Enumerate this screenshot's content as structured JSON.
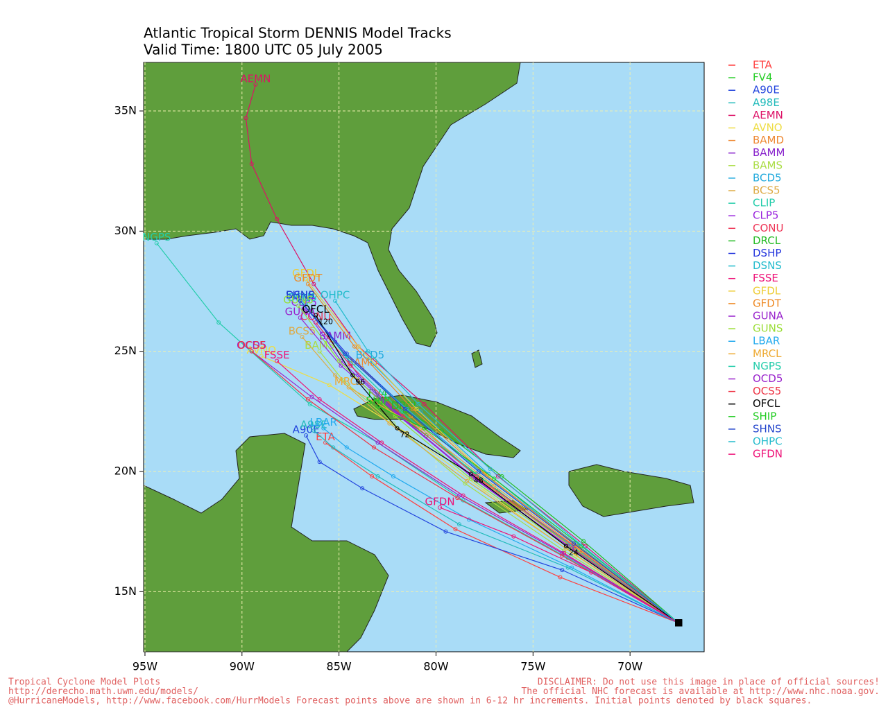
{
  "chart_data": {
    "type": "track-map",
    "title": "Atlantic Tropical Storm DENNIS Model Tracks",
    "subtitle": "Valid Time: 1800 UTC 05 July 2005",
    "xlim": [
      -95.07,
      -66.18
    ],
    "ylim": [
      12.5,
      37.02
    ],
    "xticks": [
      {
        "value": -95,
        "label": "95W"
      },
      {
        "value": -90,
        "label": "90W"
      },
      {
        "value": -85,
        "label": "85W"
      },
      {
        "value": -80,
        "label": "80W"
      },
      {
        "value": -75,
        "label": "75W"
      },
      {
        "value": -70,
        "label": "70W"
      }
    ],
    "yticks": [
      {
        "value": 15,
        "label": "15N"
      },
      {
        "value": 20,
        "label": "20N"
      },
      {
        "value": 25,
        "label": "25N"
      },
      {
        "value": 30,
        "label": "30N"
      },
      {
        "value": 35,
        "label": "35N"
      }
    ],
    "grid": true,
    "hour_labels": [
      24,
      48,
      72,
      96,
      120
    ],
    "hour_label_series": "OFCL",
    "series": [
      {
        "name": "ETA",
        "color": "#ff4040",
        "x": [
          -67.5,
          -73.6,
          -79.0,
          -83.3,
          -85.7
        ],
        "values": [
          13.7,
          15.6,
          17.6,
          19.8,
          21.2
        ]
      },
      {
        "name": "FV4",
        "color": "#22cc22",
        "x": [
          -67.5,
          -72.6,
          -76.8,
          -80.5,
          -83.0
        ],
        "values": [
          13.7,
          16.6,
          19.2,
          21.5,
          23.0
        ]
      },
      {
        "name": "A90E",
        "color": "#2244dd",
        "x": [
          -67.5,
          -73.5,
          -79.5,
          -83.8,
          -86.0,
          -86.7
        ],
        "values": [
          13.7,
          15.9,
          17.5,
          19.3,
          20.4,
          21.5
        ]
      },
      {
        "name": "A98E",
        "color": "#22bbbb",
        "x": [
          -67.5,
          -73.2,
          -78.8,
          -83.0,
          -85.3,
          -86.3
        ],
        "values": [
          13.7,
          16.0,
          17.8,
          19.8,
          21.0,
          21.7
        ]
      },
      {
        "name": "AEMN",
        "color": "#dd1166",
        "x": [
          -67.5,
          -72.3,
          -76.8,
          -80.6,
          -84.0,
          -86.3,
          -88.2,
          -89.5,
          -89.8,
          -89.3
        ],
        "values": [
          13.7,
          16.9,
          19.8,
          22.8,
          25.2,
          27.8,
          30.5,
          32.8,
          34.7,
          36.1
        ]
      },
      {
        "name": "AVNO",
        "color": "#eedd44",
        "x": [
          -67.5,
          -72.8,
          -77.5,
          -81.5,
          -85.5,
          -89.0
        ],
        "values": [
          13.7,
          16.5,
          19.2,
          21.6,
          23.6,
          24.8
        ]
      },
      {
        "name": "BAMD",
        "color": "#ee8833",
        "x": [
          -67.5,
          -72.9,
          -77.8,
          -81.3,
          -83.8
        ],
        "values": [
          13.7,
          16.8,
          19.7,
          22.3,
          24.3
        ]
      },
      {
        "name": "BAMM",
        "color": "#8822cc",
        "x": [
          -67.5,
          -73.2,
          -78.2,
          -81.8,
          -84.0,
          -85.2
        ],
        "values": [
          13.7,
          16.9,
          19.8,
          22.3,
          24.0,
          25.4
        ]
      },
      {
        "name": "BAMS",
        "color": "#aadd44",
        "x": [
          -67.5,
          -73.4,
          -78.5,
          -82.2,
          -84.8,
          -86.0
        ],
        "values": [
          13.7,
          16.7,
          19.5,
          22.0,
          23.8,
          25.0
        ]
      },
      {
        "name": "BCD5",
        "color": "#22aadd",
        "x": [
          -67.5,
          -72.7,
          -77.3,
          -80.8,
          -83.4
        ],
        "values": [
          13.7,
          16.9,
          19.9,
          22.5,
          24.6
        ]
      },
      {
        "name": "BCS5",
        "color": "#ddaa44",
        "x": [
          -67.5,
          -73.3,
          -78.4,
          -82.4,
          -85.2,
          -86.9
        ],
        "values": [
          13.7,
          16.8,
          19.6,
          22.0,
          24.0,
          25.6
        ]
      },
      {
        "name": "CLIP",
        "color": "#22ccaa",
        "x": [
          -67.5,
          -73.0,
          -78.0,
          -81.8,
          -84.7,
          -86.7
        ],
        "values": [
          13.7,
          16.9,
          19.9,
          22.5,
          24.8,
          27.0
        ]
      },
      {
        "name": "CLP5",
        "color": "#9922dd",
        "x": [
          -67.5,
          -73.1,
          -78.1,
          -82.0,
          -84.9,
          -86.8
        ],
        "values": [
          13.7,
          16.8,
          19.8,
          22.4,
          24.6,
          26.8
        ]
      },
      {
        "name": "CONU",
        "color": "#ee3355",
        "x": [
          -67.5,
          -72.9,
          -77.9,
          -81.7,
          -84.4,
          -86.2
        ],
        "values": [
          13.7,
          16.9,
          19.8,
          22.3,
          24.4,
          26.2
        ]
      },
      {
        "name": "DRCL",
        "color": "#22bb22",
        "x": [
          -67.5,
          -72.4,
          -76.6,
          -79.7,
          -81.6
        ],
        "values": [
          13.7,
          17.1,
          19.8,
          21.7,
          22.5
        ]
      },
      {
        "name": "DSHP",
        "color": "#2233dd",
        "x": [
          -67.5,
          -72.8,
          -77.7,
          -81.5,
          -84.6,
          -87.0
        ],
        "values": [
          13.7,
          17.0,
          20.0,
          22.6,
          24.9,
          27.1
        ]
      },
      {
        "name": "DSNS",
        "color": "#22bbcc",
        "x": [
          -67.5,
          -72.8,
          -77.7,
          -81.5,
          -84.6,
          -86.9
        ],
        "values": [
          13.7,
          17.0,
          20.0,
          22.6,
          24.8,
          27.0
        ]
      },
      {
        "name": "FSSE",
        "color": "#ee1177",
        "x": [
          -67.5,
          -73.4,
          -78.6,
          -82.8,
          -86.0,
          -88.2
        ],
        "values": [
          13.7,
          16.6,
          19.0,
          21.2,
          23.0,
          24.6
        ]
      },
      {
        "name": "GFDL",
        "color": "#eecc33",
        "x": [
          -67.5,
          -72.6,
          -77.3,
          -81.0,
          -84.0,
          -86.7
        ],
        "values": [
          13.7,
          16.8,
          19.8,
          22.6,
          25.2,
          28.0
        ]
      },
      {
        "name": "GFDT",
        "color": "#ee8822",
        "x": [
          -67.5,
          -72.7,
          -77.5,
          -81.2,
          -84.2,
          -86.6
        ],
        "values": [
          13.7,
          16.9,
          19.9,
          22.6,
          25.2,
          27.8
        ]
      },
      {
        "name": "GUNA",
        "color": "#9922cc",
        "x": [
          -67.5,
          -73.0,
          -78.0,
          -81.9,
          -84.9,
          -87.0
        ],
        "values": [
          13.7,
          16.8,
          19.7,
          22.3,
          24.4,
          26.4
        ]
      },
      {
        "name": "GUNS",
        "color": "#99dd33",
        "x": [
          -67.5,
          -73.1,
          -78.2,
          -82.1,
          -85.0,
          -87.1
        ],
        "values": [
          13.7,
          16.8,
          19.7,
          22.3,
          24.6,
          26.9
        ]
      },
      {
        "name": "LBAR",
        "color": "#22aaee",
        "x": [
          -67.5,
          -73.0,
          -78.3,
          -82.2,
          -84.6,
          -85.8
        ],
        "values": [
          13.7,
          16.0,
          18.0,
          19.8,
          21.0,
          21.8
        ]
      },
      {
        "name": "MRCL",
        "color": "#eeaa33",
        "x": [
          -67.5,
          -72.5,
          -77.0,
          -80.8,
          -84.5
        ],
        "values": [
          13.7,
          16.7,
          19.4,
          21.8,
          23.5
        ]
      },
      {
        "name": "NGPS",
        "color": "#22ccaa",
        "x": [
          -67.5,
          -73.2,
          -78.6,
          -83.0,
          -86.5,
          -91.2,
          -94.4
        ],
        "values": [
          13.7,
          16.4,
          18.8,
          21.2,
          22.8,
          26.2,
          29.5
        ]
      },
      {
        "name": "OCD5",
        "color": "#9922cc",
        "x": [
          -67.5,
          -73.5,
          -78.8,
          -83.0,
          -86.4,
          -89.5
        ],
        "values": [
          13.7,
          16.6,
          19.0,
          21.2,
          23.1,
          25.0
        ]
      },
      {
        "name": "OCS5",
        "color": "#ee3344",
        "x": [
          -67.5,
          -73.5,
          -78.9,
          -83.2,
          -86.6,
          -89.5
        ],
        "values": [
          13.7,
          16.5,
          18.9,
          21.0,
          23.0,
          25.0
        ]
      },
      {
        "name": "OFCL",
        "color": "#000000",
        "x": [
          -67.5,
          -73.3,
          -78.2,
          -82.0,
          -84.3,
          -86.2
        ],
        "values": [
          13.7,
          16.9,
          19.9,
          21.8,
          24.0,
          26.5
        ]
      },
      {
        "name": "SHIP",
        "color": "#22cc22",
        "x": [
          -67.5,
          -72.5,
          -77.0,
          -80.6,
          -83.0
        ],
        "values": [
          13.7,
          16.9,
          19.7,
          21.8,
          22.7
        ]
      },
      {
        "name": "SHNS",
        "color": "#2244cc",
        "x": [
          -67.5,
          -72.9,
          -77.8,
          -81.6,
          -84.7,
          -87.0
        ],
        "values": [
          13.7,
          17.0,
          20.0,
          22.6,
          24.9,
          27.1
        ]
      },
      {
        "name": "OHPC",
        "color": "#22bbcc",
        "x": [
          -67.5,
          -72.6,
          -77.2,
          -80.9,
          -83.5,
          -85.2
        ],
        "values": [
          13.7,
          17.0,
          20.1,
          22.8,
          25.0,
          27.1
        ]
      },
      {
        "name": "GFDN",
        "color": "#ee1177",
        "x": [
          -67.5,
          -72.0,
          -76.0,
          -79.8
        ],
        "values": [
          13.7,
          15.8,
          17.3,
          18.5
        ]
      }
    ]
  },
  "footer": {
    "left": [
      "Tropical Cyclone Model Plots",
      "http://derecho.math.uwm.edu/models/",
      "@HurricaneModels, http://www.facebook.com/HurrModels  Forecast points above are shown in 6-12 hr increments. Initial points denoted by black squares."
    ],
    "right": [
      "DISCLAIMER: Do not use this image in place of official sources!",
      "The official NHC forecast is available at http://www.nhc.noaa.gov."
    ]
  }
}
